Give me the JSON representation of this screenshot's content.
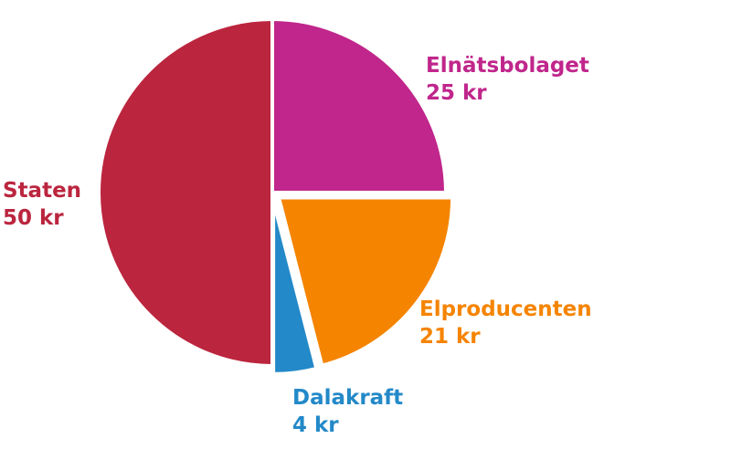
{
  "chart_data": {
    "type": "pie",
    "title": "",
    "unit": "kr",
    "slices": [
      {
        "name": "Elnätsbolaget",
        "value": 25,
        "value_label": "25 kr",
        "color": "#c0268b"
      },
      {
        "name": "Elproducenten",
        "value": 21,
        "value_label": "21 kr",
        "color": "#f58400"
      },
      {
        "name": "Dalakraft",
        "value": 4,
        "value_label": "4 kr",
        "color": "#2389c8"
      },
      {
        "name": "Staten",
        "value": 50,
        "value_label": "50 kr",
        "color": "#bb253e"
      }
    ],
    "start_angle": "12 o'clock",
    "direction": "clockwise",
    "exploded": [
      "Elproducenten",
      "Dalakraft"
    ],
    "legend": "none (labels beside slices)"
  }
}
